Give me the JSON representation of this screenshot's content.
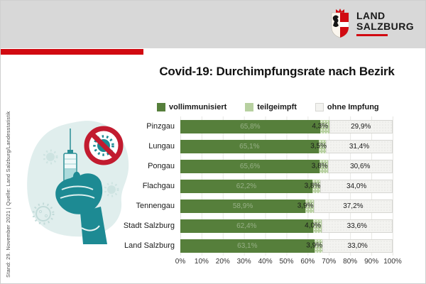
{
  "header": {
    "logo_line1": "LAND",
    "logo_line2": "SALZBURG"
  },
  "sidebar": {
    "source_text": "Stand: 29. November 2021 | Quelle: Land Salzburg/Landesstatistik"
  },
  "title": "Covid-19: Durchimpfungsrate nach Bezirk",
  "colors": {
    "vollimmunisiert": "#567f3b",
    "teilgeimpft": "#b7d0a0",
    "ohne_impfung": "#f3f3f0",
    "accent_red": "#d10a11",
    "prohibition_red": "#c21b2f",
    "teal": "#1d8a93",
    "band_gray": "#d8d8d8"
  },
  "legend": [
    {
      "label": "vollimmunisiert",
      "pattern": "solid",
      "color": "#567f3b"
    },
    {
      "label": "teilgeimpft",
      "pattern": "dots",
      "color": "#b7d0a0"
    },
    {
      "label": "ohne Impfung",
      "pattern": "dots-faint",
      "color": "#f3f3f0"
    }
  ],
  "chart_data": {
    "type": "bar",
    "orientation": "horizontal",
    "stacked": true,
    "title": "Covid-19: Durchimpfungsrate nach Bezirk",
    "categories": [
      "Pinzgau",
      "Lungau",
      "Pongau",
      "Flachgau",
      "Tennengau",
      "Stadt Salzburg",
      "Land Salzburg"
    ],
    "series": [
      {
        "name": "vollimmunisiert",
        "values": [
          65.8,
          65.1,
          65.6,
          62.2,
          58.9,
          62.4,
          63.1
        ],
        "labels": [
          "65,8%",
          "65,1%",
          "65,6%",
          "62,2%",
          "58,9%",
          "62,4%",
          "63,1%"
        ]
      },
      {
        "name": "teilgeimpft",
        "values": [
          4.3,
          3.5,
          3.8,
          3.8,
          3.9,
          4.0,
          3.9
        ],
        "labels": [
          "4,3%",
          "3,5%",
          "3,8%",
          "3,8%",
          "3,9%",
          "4,0%",
          "3,9%"
        ]
      },
      {
        "name": "ohne Impfung",
        "values": [
          29.9,
          31.4,
          30.6,
          34.0,
          37.2,
          33.6,
          33.0
        ],
        "labels": [
          "29,9%",
          "31,4%",
          "30,6%",
          "34,0%",
          "37,2%",
          "33,6%",
          "33,0%"
        ]
      }
    ],
    "x_ticks": [
      "0%",
      "10%",
      "20%",
      "30%",
      "40%",
      "50%",
      "60%",
      "70%",
      "80%",
      "90%",
      "100%"
    ],
    "xlim": [
      0,
      100
    ],
    "grid": true,
    "legend_position": "top"
  }
}
